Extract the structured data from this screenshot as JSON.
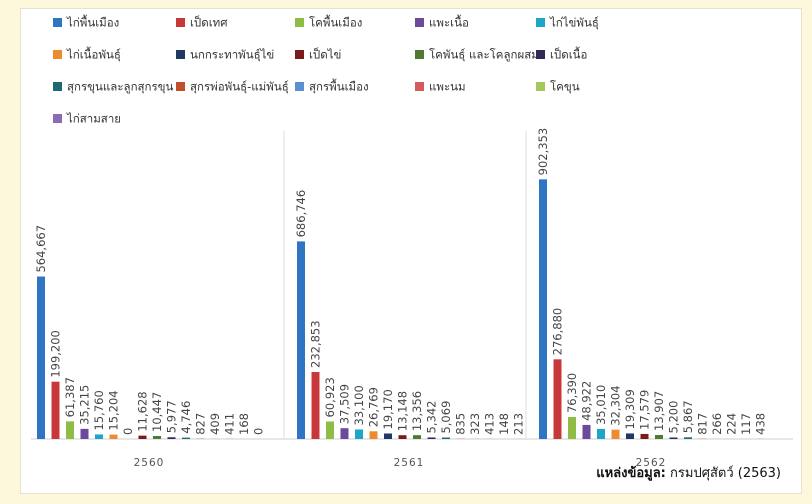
{
  "chart_data": {
    "type": "bar",
    "categories": [
      "2560",
      "2561",
      "2562"
    ],
    "series": [
      {
        "name": "ไก่พื้นเมือง",
        "color": "#2e75c3",
        "values": [
          564667,
          686746,
          902353
        ]
      },
      {
        "name": "เป็ดเทศ",
        "color": "#c8383a",
        "values": [
          199200,
          232853,
          276880
        ]
      },
      {
        "name": "โคพื้นเมือง",
        "color": "#8fbc45",
        "values": [
          61387,
          60923,
          76390
        ]
      },
      {
        "name": "แพะเนื้อ",
        "color": "#6b4a9e",
        "values": [
          35215,
          37509,
          48922
        ]
      },
      {
        "name": "ไก่ไข่พันธุ์",
        "color": "#1ea6c8",
        "values": [
          15760,
          33100,
          35010
        ]
      },
      {
        "name": "ไก่เนื้อพันธุ์",
        "color": "#f08a2e",
        "values": [
          15204,
          26769,
          32304
        ]
      },
      {
        "name": "นกกระทาพันธุ์ไข่",
        "color": "#203864",
        "values": [
          0,
          19170,
          19309
        ]
      },
      {
        "name": "เป็ดไข่",
        "color": "#7b1a1a",
        "values": [
          11628,
          13148,
          17579
        ]
      },
      {
        "name": "โคพันธุ์ และโคลูกผสม",
        "color": "#4e7a34",
        "values": [
          10447,
          13356,
          13907
        ]
      },
      {
        "name": "เป็ดเนื้อ",
        "color": "#2f2a57",
        "values": [
          5977,
          5342,
          5200
        ]
      },
      {
        "name": "สุกรขุนและลูกสุกรขุน",
        "color": "#1d6a72",
        "values": [
          4746,
          5069,
          5867
        ]
      },
      {
        "name": "สุกรพ่อพันธุ์-แม่พันธุ์",
        "color": "#c0502a",
        "values": [
          827,
          835,
          817
        ]
      },
      {
        "name": "สุกรพื้นเมือง",
        "color": "#5b8fd1",
        "values": [
          409,
          323,
          266
        ]
      },
      {
        "name": "แพะนม",
        "color": "#d55a5e",
        "values": [
          411,
          413,
          224
        ]
      },
      {
        "name": "โคขุน",
        "color": "#a6c85a",
        "values": [
          168,
          148,
          117
        ]
      },
      {
        "name": "ไก่สามสาย",
        "color": "#8a6bb5",
        "values": [
          0,
          213,
          438
        ]
      }
    ],
    "ylim": [
      0,
      1000000
    ],
    "legend": "top",
    "grid": false
  },
  "source": {
    "label": "แหล่งข้อมูล:",
    "text": "กรมปศุสัตว์ (2563)"
  }
}
